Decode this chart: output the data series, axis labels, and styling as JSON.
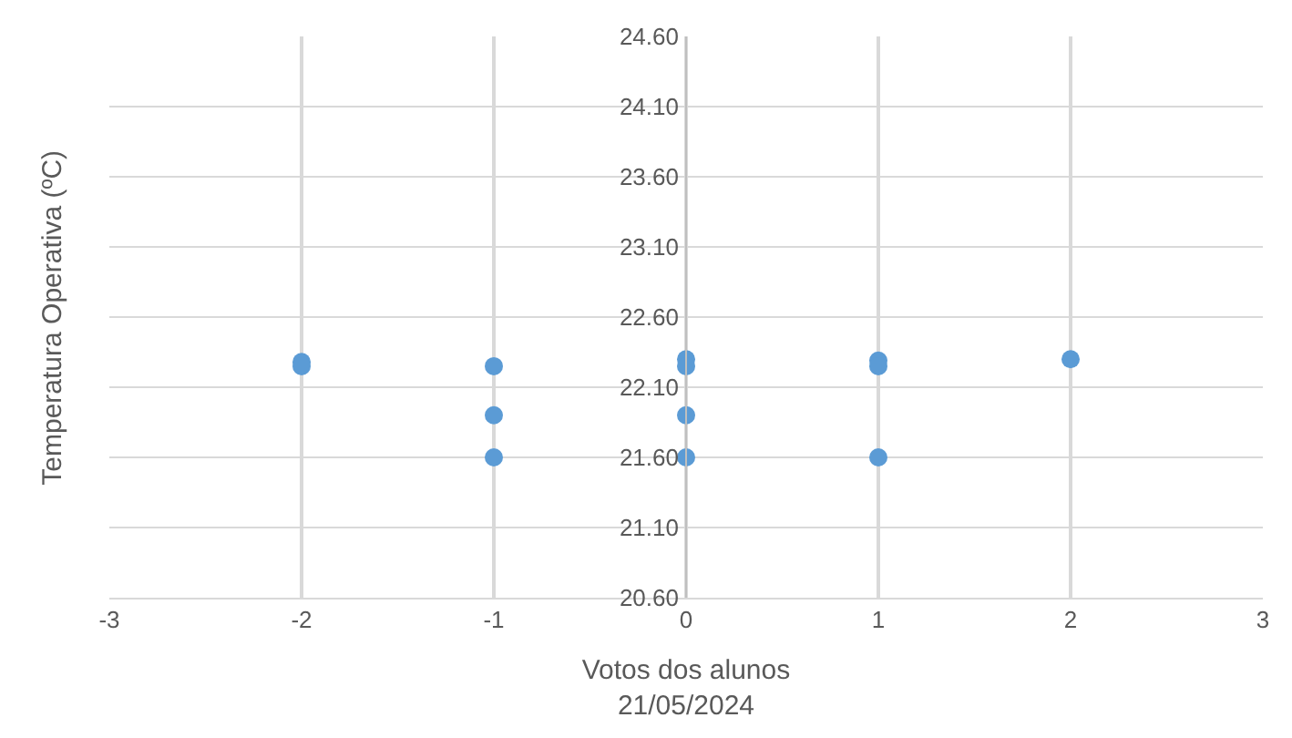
{
  "chart_data": {
    "type": "scatter",
    "xlabel": "Votos dos alunos\n21/05/2024",
    "ylabel": "Temperatura Operativa (ºC)",
    "x": [
      -2,
      -2,
      -1,
      -1,
      -1,
      0,
      0,
      0,
      0,
      1,
      1,
      1,
      2
    ],
    "series": [
      {
        "color": "#5b9bd5",
        "values": [
          22.28,
          22.25,
          22.25,
          21.9,
          21.6,
          22.3,
          22.25,
          21.9,
          21.6,
          22.29,
          22.25,
          21.6,
          22.3
        ]
      }
    ],
    "xlim": [
      -3,
      3
    ],
    "xticks": [
      -3,
      -2,
      -1,
      0,
      1,
      2,
      3
    ],
    "ylim": [
      20.6,
      24.6
    ],
    "yticks": [
      {
        "value": 20.6,
        "label": "20.60"
      },
      {
        "value": 21.1,
        "label": "21.10"
      },
      {
        "value": 21.6,
        "label": "21.60"
      },
      {
        "value": 22.1,
        "label": "22.10"
      },
      {
        "value": 22.6,
        "label": "22.60"
      },
      {
        "value": 23.1,
        "label": "23.10"
      },
      {
        "value": 23.6,
        "label": "23.60"
      },
      {
        "value": 24.1,
        "label": "24.10"
      },
      {
        "value": 24.6,
        "label": "24.60"
      }
    ],
    "grid": true,
    "marker": "circle",
    "legend": false
  }
}
